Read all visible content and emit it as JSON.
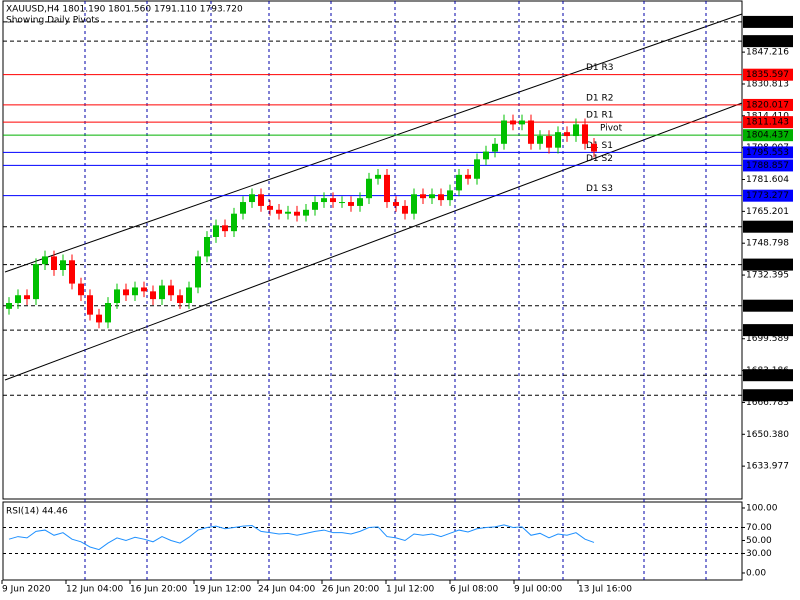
{
  "chart_data": {
    "type": "candlestick",
    "title": "XAUUSD,H4  1801.190 1801.560 1791.110 1793.720",
    "subtitle": "Showing Daily Pivots",
    "up_color": "#00c000",
    "down_color": "#ff0000",
    "grid": true,
    "open": [
      1715,
      1718,
      1722,
      1720,
      1738,
      1742,
      1735,
      1740,
      1728,
      1722,
      1712,
      1708,
      1718,
      1725,
      1722,
      1726,
      1724,
      1720,
      1727,
      1722,
      1718,
      1726,
      1742,
      1752,
      1758,
      1755,
      1764,
      1770,
      1774,
      1768,
      1766,
      1764,
      1765,
      1763,
      1766,
      1770,
      1772,
      1770,
      1770,
      1768,
      1772,
      1782,
      1784,
      1770,
      1768,
      1764,
      1774,
      1772,
      1774,
      1771,
      1776,
      1784,
      1782,
      1792,
      1796,
      1800,
      1812,
      1810,
      1812,
      1800,
      1804,
      1798,
      1806,
      1804,
      1810,
      1800
    ],
    "high": [
      1721,
      1725,
      1725,
      1741,
      1745,
      1745,
      1743,
      1743,
      1731,
      1725,
      1715,
      1721,
      1728,
      1728,
      1729,
      1729,
      1727,
      1730,
      1730,
      1725,
      1729,
      1745,
      1755,
      1761,
      1761,
      1767,
      1773,
      1777,
      1777,
      1771,
      1769,
      1768,
      1768,
      1769,
      1773,
      1775,
      1775,
      1773,
      1773,
      1775,
      1785,
      1787,
      1787,
      1773,
      1771,
      1777,
      1777,
      1777,
      1777,
      1779,
      1787,
      1787,
      1795,
      1799,
      1803,
      1815,
      1815,
      1815,
      1815,
      1807,
      1807,
      1809,
      1809,
      1813,
      1813,
      1803
    ],
    "low": [
      1712,
      1715,
      1717,
      1717,
      1735,
      1732,
      1732,
      1725,
      1719,
      1709,
      1705,
      1705,
      1715,
      1719,
      1719,
      1721,
      1717,
      1717,
      1719,
      1715,
      1715,
      1723,
      1739,
      1749,
      1752,
      1752,
      1761,
      1767,
      1765,
      1763,
      1761,
      1761,
      1760,
      1760,
      1763,
      1767,
      1767,
      1767,
      1765,
      1765,
      1769,
      1779,
      1767,
      1765,
      1761,
      1761,
      1769,
      1769,
      1768,
      1768,
      1773,
      1779,
      1779,
      1789,
      1793,
      1797,
      1807,
      1807,
      1797,
      1797,
      1795,
      1795,
      1801,
      1801,
      1797,
      1793
    ],
    "close": [
      1718,
      1722,
      1720,
      1738,
      1742,
      1735,
      1740,
      1728,
      1722,
      1712,
      1708,
      1718,
      1725,
      1722,
      1726,
      1724,
      1720,
      1727,
      1722,
      1718,
      1726,
      1742,
      1752,
      1758,
      1755,
      1764,
      1770,
      1774,
      1768,
      1766,
      1764,
      1765,
      1763,
      1766,
      1770,
      1772,
      1770,
      1770,
      1768,
      1772,
      1782,
      1784,
      1770,
      1768,
      1764,
      1774,
      1772,
      1774,
      1771,
      1776,
      1784,
      1782,
      1792,
      1796,
      1800,
      1812,
      1810,
      1812,
      1800,
      1804,
      1798,
      1806,
      1804,
      1810,
      1800,
      1796
    ],
    "ylim": [
      1617.05,
      1873.55
    ],
    "yticks": [
      1847.216,
      1830.813,
      {
        "value": 1814.41,
        "label": "1814.410"
      },
      1798.007,
      1781.604,
      1765.201,
      1748.798,
      1732.395,
      1699.589,
      1683.186,
      1666.783,
      {
        "value": 1650.38,
        "label": "1650.380"
      },
      1633.977
    ],
    "levels": [
      {
        "value": 1862.778,
        "label": "1862.778",
        "color": "#000000"
      },
      {
        "value": 1852.873,
        "label": "1852.873",
        "color": "#000000"
      },
      {
        "value": 1835.597,
        "label": "1835.597",
        "color": "#ff0000",
        "name": "D1 R3"
      },
      {
        "value": 1820.017,
        "label": "1820.017",
        "color": "#ff0000",
        "name": "D1 R2"
      },
      {
        "value": 1811.143,
        "label": "1811.143",
        "color": "#ff0000",
        "name": "D1 R1"
      },
      {
        "value": 1804.437,
        "label": "1804.437",
        "color": "#00b000",
        "name": "Pivot"
      },
      {
        "value": 1795.553,
        "label": "1795.553",
        "color": "#0000ff",
        "name": "D1 S1"
      },
      {
        "value": 1788.857,
        "label": "1788.857",
        "color": "#0000ff",
        "name": "D1 S2"
      },
      {
        "value": 1773.277,
        "label": "1773.277",
        "color": "#0000ff",
        "name": "D1 S3"
      },
      {
        "value": 1757.301,
        "label": "1757.301",
        "color": "#000000"
      },
      {
        "value": 1737.786,
        "label": "1737.786",
        "color": "#000000"
      },
      {
        "value": 1716.612,
        "label": "1716.612",
        "color": "#000000"
      },
      {
        "value": 1704.034,
        "label": "1704.034",
        "color": "#000000"
      },
      {
        "value": 1680.81,
        "label": "1680.810",
        "color": "#000000"
      },
      {
        "value": 1670.494,
        "label": "1670.494",
        "color": "#000000"
      }
    ],
    "x_labels": [
      "9 Jun 2020",
      "12 Jun 04:00",
      "16 Jun 20:00",
      "19 Jun 12:00",
      "24 Jun 04:00",
      "26 Jun 20:00",
      "1 Jul 12:00",
      "6 Jul 08:00",
      "9 Jul 00:00",
      "13 Jul 16:00"
    ],
    "rsi": {
      "title": "RSI(14) 44.46",
      "color": "#1e90ff",
      "ylim": [
        -10.8,
        109.2
      ],
      "yticks": [
        {
          "value": 100,
          "label": "100.00"
        },
        {
          "value": 70,
          "label": "70.00"
        },
        {
          "value": 50,
          "label": "50.00"
        },
        {
          "value": 30,
          "label": "30.00"
        },
        {
          "value": 0,
          "label": "0.00"
        }
      ],
      "levels": [
        70,
        30
      ],
      "values": [
        52,
        56,
        54,
        64,
        66,
        58,
        62,
        52,
        48,
        40,
        36,
        46,
        54,
        50,
        55,
        52,
        48,
        56,
        50,
        46,
        55,
        66,
        70,
        72,
        68,
        70,
        72,
        73,
        64,
        62,
        60,
        61,
        58,
        61,
        64,
        66,
        62,
        62,
        60,
        64,
        70,
        71,
        56,
        54,
        50,
        60,
        58,
        60,
        56,
        61,
        66,
        63,
        68,
        70,
        71,
        74,
        70,
        71,
        58,
        61,
        54,
        60,
        58,
        62,
        52,
        47
      ]
    }
  }
}
